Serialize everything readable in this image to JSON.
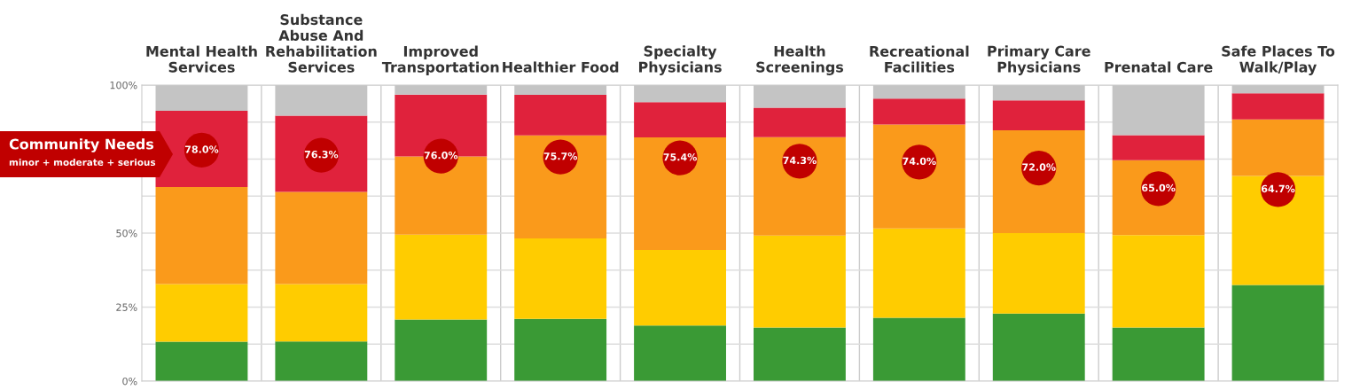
{
  "chart_data": {
    "type": "bar",
    "stacked": true,
    "categories": [
      "Mental Health Services",
      "Substance Abuse And Rehabilitation Services",
      "Improved Transportation",
      "Healthier Food",
      "Specialty Physicians",
      "Health Screenings",
      "Recreational Facilities",
      "Primary Care Physicians",
      "Prenatal Care",
      "Safe Places To Walk/Play"
    ],
    "series": [
      {
        "color": "#3a9a35",
        "values": [
          13.3,
          13.4,
          20.8,
          21.0,
          18.8,
          18.1,
          21.4,
          22.8,
          18.1,
          32.5
        ]
      },
      {
        "color": "#ffcc00",
        "values": [
          19.5,
          19.4,
          28.7,
          27.2,
          25.5,
          31.1,
          30.2,
          27.2,
          31.2,
          36.8
        ]
      },
      {
        "color": "#fa9a1b",
        "values": [
          32.8,
          31.1,
          26.4,
          34.8,
          38.0,
          33.2,
          35.1,
          34.7,
          25.3,
          19.1
        ]
      },
      {
        "color": "#e0223c",
        "values": [
          25.7,
          25.8,
          20.9,
          13.7,
          11.9,
          10.0,
          8.7,
          10.1,
          8.5,
          8.8
        ]
      },
      {
        "color": "#c4c4c4",
        "values": [
          8.7,
          10.3,
          3.2,
          3.3,
          5.8,
          7.6,
          4.6,
          5.2,
          16.9,
          2.8
        ]
      },
      {
        "type": "scatter",
        "color": "#c00000",
        "x": [
          "Mental Health Services",
          "Substance Abuse And Rehabilitation Services",
          "Improved Transportation",
          "Healthier Food",
          "Specialty Physicians",
          "Health Screenings",
          "Recreational Facilities",
          "Primary Care Physicians",
          "Prenatal Care",
          "Safe Places To Walk/Play"
        ],
        "values": [
          78.0,
          76.3,
          76.0,
          75.7,
          75.4,
          74.3,
          74.0,
          72.0,
          65.0,
          64.7
        ],
        "value_labels": [
          "78.0%",
          "76.3%",
          "76.0%",
          "75.7%",
          "75.4%",
          "74.3%",
          "74.0%",
          "72.0%",
          "65.0%",
          "64.7%"
        ]
      }
    ],
    "ylim": [
      0,
      100
    ],
    "yticks": [
      {
        "value": 0,
        "label": "0%"
      },
      {
        "value": 12.5,
        "label": null
      },
      {
        "value": 25,
        "label": "25%"
      },
      {
        "value": 37.5,
        "label": null
      },
      {
        "value": 50,
        "label": "50%"
      },
      {
        "value": 62.5,
        "label": null
      },
      {
        "value": 75,
        "label": null
      },
      {
        "value": 87.5,
        "label": null
      },
      {
        "value": 100,
        "label": "100%"
      }
    ],
    "grid": true,
    "marker": "circle",
    "annotations": [
      "Community Needs",
      "minor + moderate + serious"
    ]
  }
}
